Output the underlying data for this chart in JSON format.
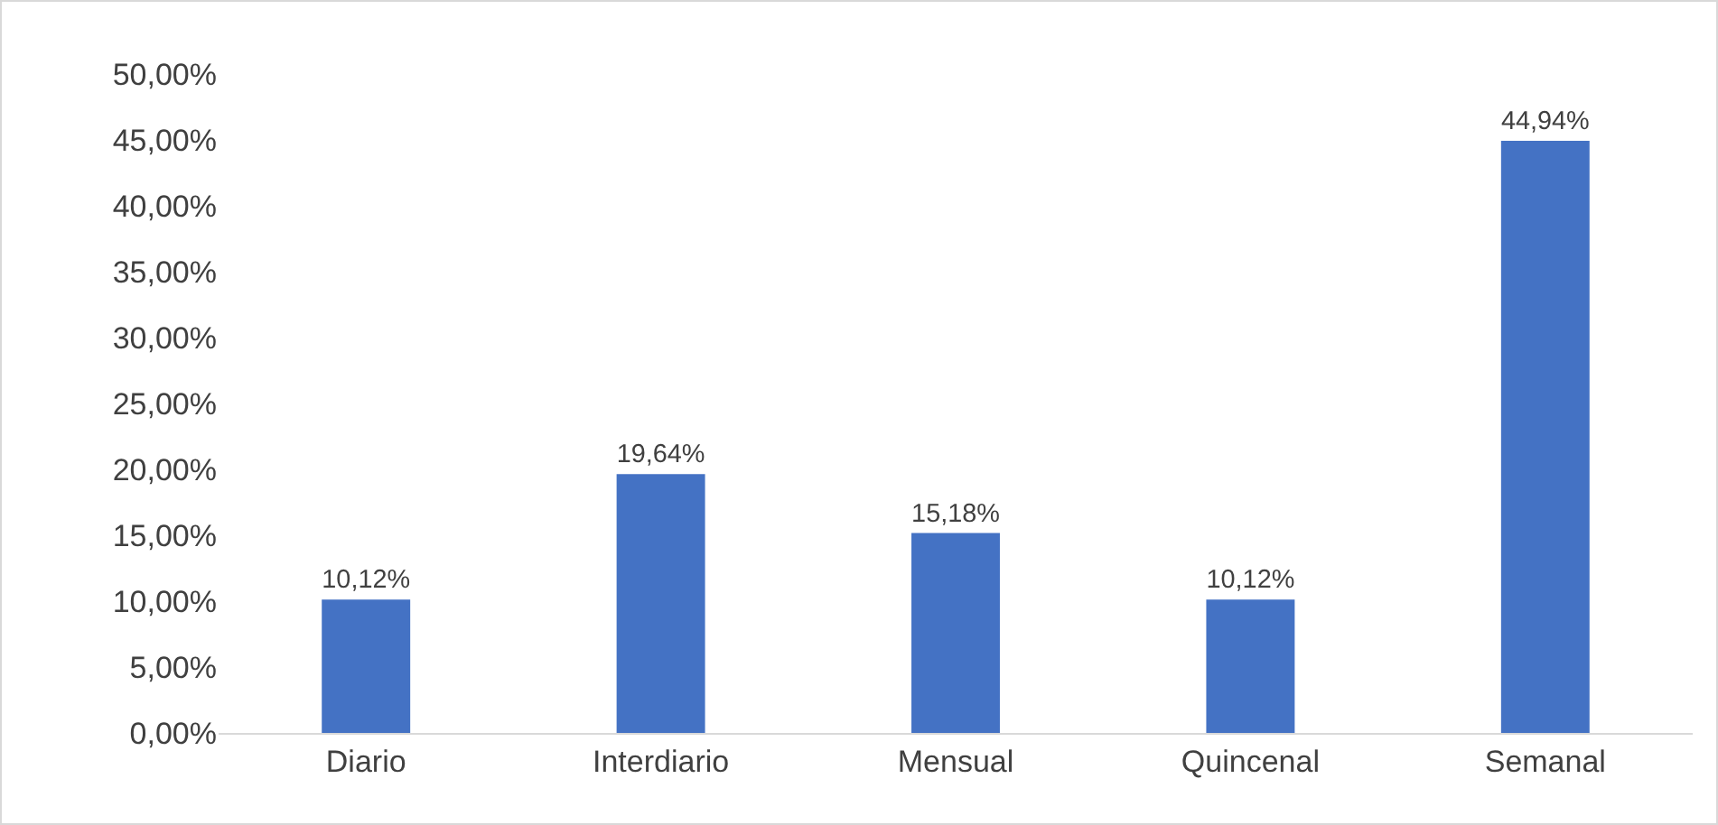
{
  "chart_data": {
    "type": "bar",
    "categories": [
      "Diario",
      "Interdiario",
      "Mensual",
      "Quincenal",
      "Semanal"
    ],
    "values": [
      10.12,
      19.64,
      15.18,
      10.12,
      44.94
    ],
    "value_labels": [
      "10,12%",
      "19,64%",
      "15,18%",
      "10,12%",
      "44,94%"
    ],
    "color": "#4472c4",
    "ylim": [
      0,
      50
    ],
    "yticks": [
      {
        "value": 0,
        "label": "0,00%"
      },
      {
        "value": 5,
        "label": "5,00%"
      },
      {
        "value": 10,
        "label": "10,00%"
      },
      {
        "value": 15,
        "label": "15,00%"
      },
      {
        "value": 20,
        "label": "20,00%"
      },
      {
        "value": 25,
        "label": "25,00%"
      },
      {
        "value": 30,
        "label": "30,00%"
      },
      {
        "value": 35,
        "label": "35,00%"
      },
      {
        "value": 40,
        "label": "40,00%"
      },
      {
        "value": 45,
        "label": "45,00%"
      },
      {
        "value": 50,
        "label": "50,00%"
      }
    ],
    "grid": false,
    "legend": false
  }
}
